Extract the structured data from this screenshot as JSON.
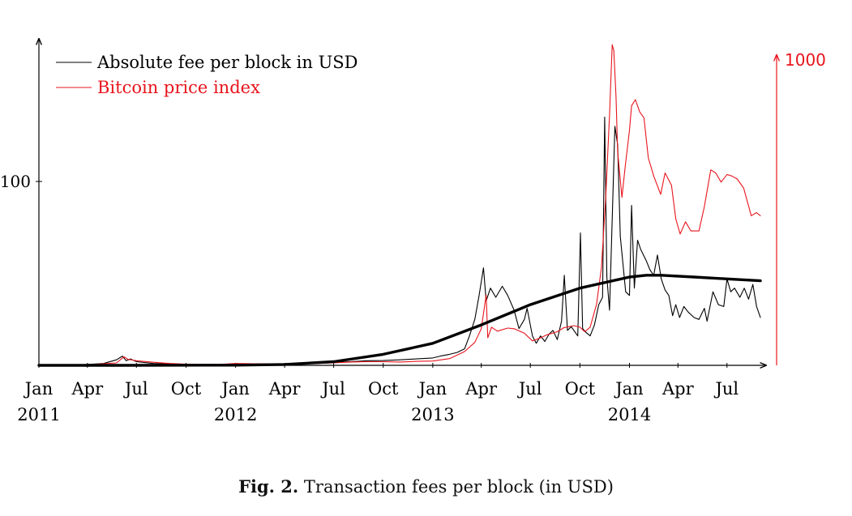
{
  "chart_data": {
    "type": "line",
    "x_ticks": [
      {
        "date": "2011-01-01",
        "month": "Jan",
        "year": "2011"
      },
      {
        "date": "2011-04-01",
        "month": "Apr"
      },
      {
        "date": "2011-07-01",
        "month": "Jul"
      },
      {
        "date": "2011-10-01",
        "month": "Oct"
      },
      {
        "date": "2012-01-01",
        "month": "Jan",
        "year": "2012"
      },
      {
        "date": "2012-04-01",
        "month": "Apr"
      },
      {
        "date": "2012-07-01",
        "month": "Jul"
      },
      {
        "date": "2012-10-01",
        "month": "Oct"
      },
      {
        "date": "2013-01-01",
        "month": "Jan",
        "year": "2013"
      },
      {
        "date": "2013-04-01",
        "month": "Apr"
      },
      {
        "date": "2013-07-01",
        "month": "Jul"
      },
      {
        "date": "2013-10-01",
        "month": "Oct"
      },
      {
        "date": "2014-01-01",
        "month": "Jan",
        "year": "2014"
      },
      {
        "date": "2014-04-01",
        "month": "Apr"
      },
      {
        "date": "2014-07-01",
        "month": "Jul"
      }
    ],
    "x_range": [
      "2011-01-01",
      "2014-09-01"
    ],
    "left_axis": {
      "ticks": [
        100
      ],
      "range": [
        0,
        180
      ]
    },
    "right_axis": {
      "ticks": [
        1000
      ],
      "range": [
        0,
        1050
      ],
      "color": "#e8141c"
    },
    "legend": {
      "position": "top-left",
      "entries": [
        "Absolute fee per block in USD",
        "Bitcoin price index"
      ]
    },
    "series": [
      {
        "name": "Absolute fee per block in USD",
        "axis": "left",
        "color": "#000000",
        "points": [
          [
            "2011-01-01",
            0.4
          ],
          [
            "2011-02-01",
            0.4
          ],
          [
            "2011-03-01",
            0.4
          ],
          [
            "2011-04-01",
            0.5
          ],
          [
            "2011-05-01",
            1.0
          ],
          [
            "2011-05-25",
            3.0
          ],
          [
            "2011-06-05",
            5.0
          ],
          [
            "2011-06-12",
            2.5
          ],
          [
            "2011-06-20",
            3.5
          ],
          [
            "2011-07-01",
            2.0
          ],
          [
            "2011-08-01",
            1.0
          ],
          [
            "2011-09-01",
            0.7
          ],
          [
            "2011-10-01",
            0.4
          ],
          [
            "2011-11-01",
            0.3
          ],
          [
            "2011-12-01",
            0.3
          ],
          [
            "2012-01-01",
            0.6
          ],
          [
            "2012-02-01",
            0.8
          ],
          [
            "2012-03-01",
            0.8
          ],
          [
            "2012-04-01",
            0.9
          ],
          [
            "2012-05-01",
            1.0
          ],
          [
            "2012-06-01",
            1.2
          ],
          [
            "2012-07-01",
            1.6
          ],
          [
            "2012-08-01",
            2.0
          ],
          [
            "2012-09-01",
            2.5
          ],
          [
            "2012-10-01",
            2.6
          ],
          [
            "2012-11-01",
            3.0
          ],
          [
            "2012-12-01",
            3.5
          ],
          [
            "2013-01-01",
            4.0
          ],
          [
            "2013-01-15",
            5.0
          ],
          [
            "2013-02-01",
            6.0
          ],
          [
            "2013-02-15",
            7.0
          ],
          [
            "2013-03-01",
            9.0
          ],
          [
            "2013-03-10",
            16.0
          ],
          [
            "2013-03-20",
            25.0
          ],
          [
            "2013-03-28",
            38.0
          ],
          [
            "2013-04-05",
            53.0
          ],
          [
            "2013-04-10",
            35.0
          ],
          [
            "2013-04-18",
            42.0
          ],
          [
            "2013-04-28",
            37.0
          ],
          [
            "2013-05-10",
            43.0
          ],
          [
            "2013-05-20",
            38.0
          ],
          [
            "2013-06-01",
            30.0
          ],
          [
            "2013-06-10",
            20.0
          ],
          [
            "2013-06-20",
            25.0
          ],
          [
            "2013-06-25",
            31.0
          ],
          [
            "2013-07-05",
            16.0
          ],
          [
            "2013-07-12",
            12.0
          ],
          [
            "2013-07-20",
            16.0
          ],
          [
            "2013-07-28",
            13.0
          ],
          [
            "2013-08-05",
            17.0
          ],
          [
            "2013-08-12",
            19.0
          ],
          [
            "2013-08-20",
            14.0
          ],
          [
            "2013-08-28",
            24.0
          ],
          [
            "2013-09-02",
            49.0
          ],
          [
            "2013-09-08",
            19.0
          ],
          [
            "2013-09-15",
            21.0
          ],
          [
            "2013-09-22",
            18.0
          ],
          [
            "2013-09-27",
            16.0
          ],
          [
            "2013-10-02",
            72.0
          ],
          [
            "2013-10-06",
            20.0
          ],
          [
            "2013-10-12",
            18.0
          ],
          [
            "2013-10-20",
            16.0
          ],
          [
            "2013-10-28",
            22.0
          ],
          [
            "2013-11-05",
            33.0
          ],
          [
            "2013-11-12",
            37.0
          ],
          [
            "2013-11-16",
            135.0
          ],
          [
            "2013-11-20",
            48.0
          ],
          [
            "2013-11-25",
            30.0
          ],
          [
            "2013-12-01",
            90.0
          ],
          [
            "2013-12-05",
            130.0
          ],
          [
            "2013-12-10",
            120.0
          ],
          [
            "2013-12-15",
            70.0
          ],
          [
            "2013-12-20",
            55.0
          ],
          [
            "2013-12-25",
            40.0
          ],
          [
            "2014-01-01",
            38.0
          ],
          [
            "2014-01-05",
            87.0
          ],
          [
            "2014-01-10",
            42.0
          ],
          [
            "2014-01-16",
            68.0
          ],
          [
            "2014-01-22",
            63.0
          ],
          [
            "2014-02-01",
            57.0
          ],
          [
            "2014-02-08",
            52.0
          ],
          [
            "2014-02-15",
            49.0
          ],
          [
            "2014-02-22",
            60.0
          ],
          [
            "2014-03-01",
            47.0
          ],
          [
            "2014-03-08",
            41.0
          ],
          [
            "2014-03-15",
            38.0
          ],
          [
            "2014-03-22",
            27.0
          ],
          [
            "2014-03-28",
            33.0
          ],
          [
            "2014-04-04",
            26.0
          ],
          [
            "2014-04-12",
            32.0
          ],
          [
            "2014-04-20",
            29.0
          ],
          [
            "2014-05-01",
            26.0
          ],
          [
            "2014-05-10",
            25.0
          ],
          [
            "2014-05-20",
            31.0
          ],
          [
            "2014-05-25",
            24.0
          ],
          [
            "2014-06-05",
            40.0
          ],
          [
            "2014-06-15",
            33.0
          ],
          [
            "2014-06-25",
            32.0
          ],
          [
            "2014-07-01",
            47.0
          ],
          [
            "2014-07-08",
            40.0
          ],
          [
            "2014-07-15",
            42.0
          ],
          [
            "2014-07-25",
            37.0
          ],
          [
            "2014-08-02",
            42.0
          ],
          [
            "2014-08-10",
            36.0
          ],
          [
            "2014-08-18",
            44.0
          ],
          [
            "2014-08-25",
            32.0
          ],
          [
            "2014-09-01",
            26.0
          ]
        ]
      },
      {
        "name": "Bitcoin price index",
        "axis": "right",
        "color": "#e8141c",
        "points": [
          [
            "2011-01-01",
            0.5
          ],
          [
            "2011-02-01",
            1.0
          ],
          [
            "2011-03-01",
            0.9
          ],
          [
            "2011-04-01",
            1.0
          ],
          [
            "2011-05-01",
            5.0
          ],
          [
            "2011-05-25",
            8.0
          ],
          [
            "2011-06-08",
            28.0
          ],
          [
            "2011-06-15",
            20.0
          ],
          [
            "2011-07-01",
            15.0
          ],
          [
            "2011-08-01",
            10.0
          ],
          [
            "2011-09-01",
            6.0
          ],
          [
            "2011-10-01",
            4.0
          ],
          [
            "2011-11-01",
            3.0
          ],
          [
            "2011-12-01",
            3.0
          ],
          [
            "2012-01-01",
            6.0
          ],
          [
            "2012-02-01",
            5.0
          ],
          [
            "2012-03-01",
            5.0
          ],
          [
            "2012-04-01",
            5.0
          ],
          [
            "2012-05-01",
            5.0
          ],
          [
            "2012-06-01",
            6.0
          ],
          [
            "2012-07-01",
            8.0
          ],
          [
            "2012-08-01",
            11.0
          ],
          [
            "2012-09-01",
            12.0
          ],
          [
            "2012-10-01",
            12.0
          ],
          [
            "2012-11-01",
            11.0
          ],
          [
            "2012-12-01",
            13.0
          ],
          [
            "2013-01-01",
            14.0
          ],
          [
            "2013-02-01",
            22.0
          ],
          [
            "2013-03-01",
            45.0
          ],
          [
            "2013-03-20",
            75.0
          ],
          [
            "2013-04-01",
            120.0
          ],
          [
            "2013-04-10",
            230.0
          ],
          [
            "2013-04-13",
            90.0
          ],
          [
            "2013-04-20",
            125.0
          ],
          [
            "2013-05-01",
            112.0
          ],
          [
            "2013-05-20",
            122.0
          ],
          [
            "2013-06-01",
            120.0
          ],
          [
            "2013-06-20",
            105.0
          ],
          [
            "2013-07-05",
            80.0
          ],
          [
            "2013-07-20",
            90.0
          ],
          [
            "2013-08-01",
            100.0
          ],
          [
            "2013-08-20",
            110.0
          ],
          [
            "2013-09-01",
            123.0
          ],
          [
            "2013-09-20",
            130.0
          ],
          [
            "2013-10-01",
            125.0
          ],
          [
            "2013-10-10",
            110.0
          ],
          [
            "2013-10-20",
            125.0
          ],
          [
            "2013-11-01",
            200.0
          ],
          [
            "2013-11-10",
            320.0
          ],
          [
            "2013-11-18",
            550.0
          ],
          [
            "2013-11-25",
            820.0
          ],
          [
            "2013-11-30",
            1050.0
          ],
          [
            "2013-12-03",
            1030.0
          ],
          [
            "2013-12-07",
            880.0
          ],
          [
            "2013-12-10",
            700.0
          ],
          [
            "2013-12-18",
            550.0
          ],
          [
            "2013-12-24",
            650.0
          ],
          [
            "2014-01-01",
            770.0
          ],
          [
            "2014-01-05",
            850.0
          ],
          [
            "2014-01-12",
            870.0
          ],
          [
            "2014-01-20",
            830.0
          ],
          [
            "2014-01-28",
            810.0
          ],
          [
            "2014-02-05",
            680.0
          ],
          [
            "2014-02-15",
            620.0
          ],
          [
            "2014-02-28",
            560.0
          ],
          [
            "2014-03-08",
            630.0
          ],
          [
            "2014-03-20",
            590.0
          ],
          [
            "2014-03-28",
            480.0
          ],
          [
            "2014-04-05",
            430.0
          ],
          [
            "2014-04-15",
            470.0
          ],
          [
            "2014-04-25",
            440.0
          ],
          [
            "2014-05-10",
            440.0
          ],
          [
            "2014-05-20",
            520.0
          ],
          [
            "2014-06-01",
            640.0
          ],
          [
            "2014-06-10",
            630.0
          ],
          [
            "2014-06-20",
            600.0
          ],
          [
            "2014-07-01",
            625.0
          ],
          [
            "2014-07-10",
            620.0
          ],
          [
            "2014-07-20",
            610.0
          ],
          [
            "2014-08-01",
            580.0
          ],
          [
            "2014-08-15",
            490.0
          ],
          [
            "2014-08-25",
            500.0
          ],
          [
            "2014-09-01",
            490.0
          ]
        ]
      },
      {
        "axis": "left",
        "color": "#000000",
        "style": "thick-smooth",
        "points": [
          [
            "2011-01-01",
            0.0
          ],
          [
            "2011-06-01",
            0.0
          ],
          [
            "2012-01-01",
            0.1
          ],
          [
            "2012-04-01",
            0.5
          ],
          [
            "2012-07-01",
            2.0
          ],
          [
            "2012-10-01",
            6.0
          ],
          [
            "2013-01-01",
            12.0
          ],
          [
            "2013-04-01",
            22.0
          ],
          [
            "2013-07-01",
            33.0
          ],
          [
            "2013-10-01",
            42.0
          ],
          [
            "2014-01-01",
            48.0
          ],
          [
            "2014-02-01",
            49.0
          ],
          [
            "2014-03-01",
            49.0
          ],
          [
            "2014-05-01",
            48.0
          ],
          [
            "2014-07-01",
            47.0
          ],
          [
            "2014-09-01",
            46.0
          ]
        ]
      }
    ]
  },
  "caption": {
    "label": "Fig. 2.",
    "text": "Transaction fees per block (in USD)"
  }
}
